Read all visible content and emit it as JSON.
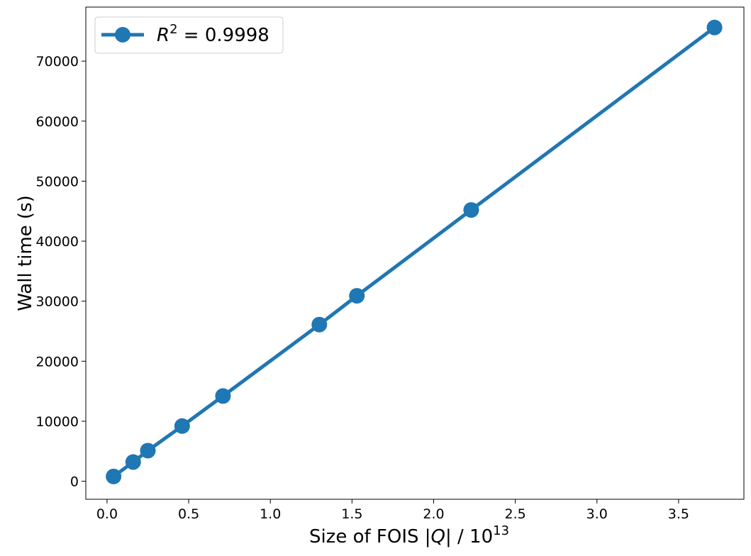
{
  "chart_data": {
    "type": "line",
    "xlabel_prefix": "Size of FOIS |",
    "xlabel_var": "Q",
    "xlabel_mid": "| / 10",
    "xlabel_sup": "13",
    "ylabel": "Wall time (s)",
    "xlim": [
      -0.13,
      3.9
    ],
    "ylim": [
      -3000,
      79000
    ],
    "xticks": [
      0.0,
      0.5,
      1.0,
      1.5,
      2.0,
      2.5,
      3.0,
      3.5
    ],
    "xtick_labels": [
      "0.0",
      "0.5",
      "1.0",
      "1.5",
      "2.0",
      "2.5",
      "3.0",
      "3.5"
    ],
    "yticks": [
      0,
      10000,
      20000,
      30000,
      40000,
      50000,
      60000,
      70000
    ],
    "ytick_labels": [
      "0",
      "10000",
      "20000",
      "30000",
      "40000",
      "50000",
      "60000",
      "70000"
    ],
    "legend_position": "upper-left",
    "series": [
      {
        "name_var": "R",
        "name_sup": "2",
        "name_value": " = 0.9998",
        "color": "#1f77b4",
        "marker": "circle",
        "x": [
          0.04,
          0.16,
          0.25,
          0.46,
          0.71,
          1.3,
          1.53,
          2.23,
          3.72
        ],
        "y": [
          800,
          3200,
          5100,
          9200,
          14200,
          26100,
          30900,
          45200,
          75600
        ]
      }
    ]
  }
}
